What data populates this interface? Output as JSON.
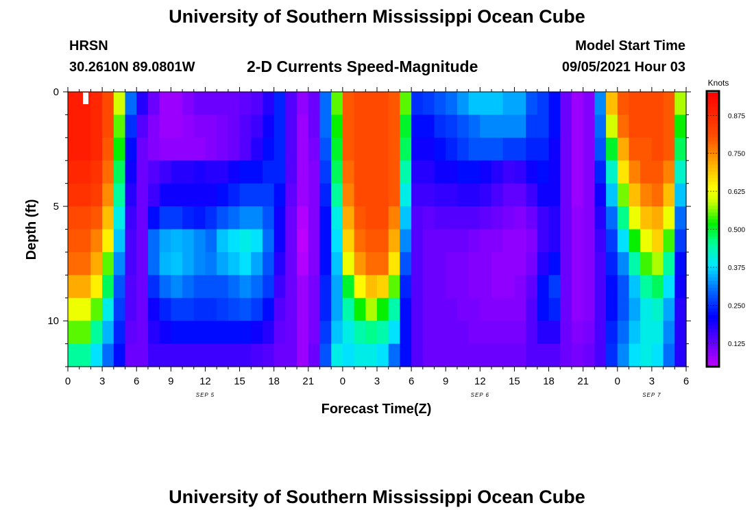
{
  "page": {
    "title_top": "University of Southern Mississippi Ocean Cube",
    "title_bottom": "University of Southern Mississippi Ocean Cube",
    "station": "HRSN",
    "location": "30.2610N  89.0801W",
    "plot_title": "2-D Currents Speed-Magnitude",
    "model_label": "Model Start Time",
    "model_time": "09/05/2021 Hour 03"
  },
  "chart_data": {
    "type": "heatmap",
    "title": "2-D Currents Speed-Magnitude",
    "xlabel": "Forecast Time(Z)",
    "ylabel": "Depth (ft)",
    "x_range_hours": [
      0,
      54
    ],
    "x_ticks": [
      {
        "h": 0,
        "label": "0"
      },
      {
        "h": 3,
        "label": "3"
      },
      {
        "h": 6,
        "label": "6"
      },
      {
        "h": 9,
        "label": "9"
      },
      {
        "h": 12,
        "label": "12"
      },
      {
        "h": 15,
        "label": "15"
      },
      {
        "h": 18,
        "label": "18"
      },
      {
        "h": 21,
        "label": "21"
      },
      {
        "h": 24,
        "label": "0"
      },
      {
        "h": 27,
        "label": "3"
      },
      {
        "h": 30,
        "label": "6"
      },
      {
        "h": 33,
        "label": "9"
      },
      {
        "h": 36,
        "label": "12"
      },
      {
        "h": 39,
        "label": "15"
      },
      {
        "h": 42,
        "label": "18"
      },
      {
        "h": 45,
        "label": "21"
      },
      {
        "h": 48,
        "label": "0"
      },
      {
        "h": 51,
        "label": "3"
      },
      {
        "h": 54,
        "label": "6"
      }
    ],
    "day_labels": [
      {
        "h": 12,
        "label": "SEP 5"
      },
      {
        "h": 36,
        "label": "SEP 6"
      },
      {
        "h": 51,
        "label": "SEP 7"
      }
    ],
    "y_range_ft": [
      0,
      12
    ],
    "y_ticks": [
      {
        "v": 0,
        "label": "0"
      },
      {
        "v": 5,
        "label": "5"
      },
      {
        "v": 10,
        "label": "10"
      }
    ],
    "colorbar": {
      "label": "Knots",
      "range": [
        0.05,
        0.95
      ],
      "ticks": [
        {
          "v": 0.125,
          "label": "0.125"
        },
        {
          "v": 0.25,
          "label": "0.250"
        },
        {
          "v": 0.375,
          "label": "0.375"
        },
        {
          "v": 0.5,
          "label": "0.500"
        },
        {
          "v": 0.625,
          "label": "0.625"
        },
        {
          "v": 0.75,
          "label": "0.750"
        },
        {
          "v": 0.875,
          "label": "0.875"
        }
      ]
    },
    "depth_levels_ft": [
      0.5,
      1.5,
      2.5,
      3.5,
      4.5,
      5.5,
      6.5,
      7.5,
      8.5,
      9.5,
      10.5,
      11.5
    ],
    "columns_per_day_hours": 1,
    "series": [
      {
        "name": "h0",
        "values": [
          0.9,
          0.9,
          0.9,
          0.88,
          0.86,
          0.82,
          0.8,
          0.78,
          0.72,
          0.62,
          0.55,
          0.45
        ]
      },
      {
        "name": "h1",
        "values": [
          0.9,
          0.9,
          0.9,
          0.88,
          0.86,
          0.82,
          0.8,
          0.78,
          0.72,
          0.62,
          0.55,
          0.45
        ]
      },
      {
        "name": "h2",
        "values": [
          0.88,
          0.88,
          0.88,
          0.86,
          0.84,
          0.8,
          0.76,
          0.72,
          0.65,
          0.55,
          0.45,
          0.38
        ]
      },
      {
        "name": "h3",
        "values": [
          0.82,
          0.82,
          0.8,
          0.78,
          0.75,
          0.7,
          0.65,
          0.55,
          0.48,
          0.4,
          0.35,
          0.3
        ]
      },
      {
        "name": "h4",
        "values": [
          0.6,
          0.55,
          0.52,
          0.48,
          0.45,
          0.4,
          0.36,
          0.32,
          0.28,
          0.26,
          0.24,
          0.22
        ]
      },
      {
        "name": "h5",
        "values": [
          0.3,
          0.25,
          0.22,
          0.2,
          0.18,
          0.16,
          0.15,
          0.15,
          0.14,
          0.14,
          0.13,
          0.12
        ]
      },
      {
        "name": "h6",
        "values": [
          0.18,
          0.14,
          0.12,
          0.12,
          0.12,
          0.12,
          0.12,
          0.12,
          0.12,
          0.12,
          0.12,
          0.12
        ]
      },
      {
        "name": "h7",
        "values": [
          0.12,
          0.1,
          0.1,
          0.14,
          0.16,
          0.22,
          0.3,
          0.3,
          0.25,
          0.2,
          0.18,
          0.16
        ]
      },
      {
        "name": "h8",
        "values": [
          0.08,
          0.08,
          0.09,
          0.16,
          0.2,
          0.26,
          0.34,
          0.35,
          0.3,
          0.24,
          0.2,
          0.16
        ]
      },
      {
        "name": "h9",
        "values": [
          0.08,
          0.08,
          0.09,
          0.18,
          0.2,
          0.26,
          0.35,
          0.36,
          0.32,
          0.26,
          0.22,
          0.16
        ]
      },
      {
        "name": "h10",
        "values": [
          0.1,
          0.09,
          0.09,
          0.18,
          0.2,
          0.24,
          0.34,
          0.34,
          0.3,
          0.26,
          0.22,
          0.16
        ]
      },
      {
        "name": "h11",
        "values": [
          0.12,
          0.1,
          0.09,
          0.19,
          0.2,
          0.23,
          0.32,
          0.32,
          0.28,
          0.25,
          0.22,
          0.16
        ]
      },
      {
        "name": "h12",
        "values": [
          0.12,
          0.1,
          0.1,
          0.18,
          0.2,
          0.25,
          0.3,
          0.31,
          0.28,
          0.25,
          0.22,
          0.16
        ]
      },
      {
        "name": "h13",
        "values": [
          0.12,
          0.11,
          0.11,
          0.18,
          0.22,
          0.28,
          0.36,
          0.34,
          0.28,
          0.26,
          0.22,
          0.16
        ]
      },
      {
        "name": "h14",
        "values": [
          0.12,
          0.12,
          0.12,
          0.2,
          0.24,
          0.3,
          0.38,
          0.36,
          0.3,
          0.27,
          0.22,
          0.16
        ]
      },
      {
        "name": "h15",
        "values": [
          0.13,
          0.14,
          0.14,
          0.22,
          0.26,
          0.32,
          0.4,
          0.38,
          0.32,
          0.28,
          0.22,
          0.16
        ]
      },
      {
        "name": "h16",
        "values": [
          0.14,
          0.16,
          0.18,
          0.22,
          0.26,
          0.32,
          0.38,
          0.34,
          0.3,
          0.26,
          0.2,
          0.15
        ]
      },
      {
        "name": "h17",
        "values": [
          0.18,
          0.2,
          0.22,
          0.24,
          0.26,
          0.28,
          0.3,
          0.28,
          0.26,
          0.22,
          0.18,
          0.14
        ]
      },
      {
        "name": "h18",
        "values": [
          0.24,
          0.24,
          0.24,
          0.24,
          0.22,
          0.2,
          0.2,
          0.18,
          0.16,
          0.14,
          0.13,
          0.12
        ]
      },
      {
        "name": "h19",
        "values": [
          0.14,
          0.14,
          0.14,
          0.14,
          0.13,
          0.12,
          0.12,
          0.12,
          0.12,
          0.12,
          0.12,
          0.12
        ]
      },
      {
        "name": "h20",
        "values": [
          0.09,
          0.08,
          0.08,
          0.08,
          0.08,
          0.06,
          0.05,
          0.06,
          0.08,
          0.08,
          0.08,
          0.08
        ]
      },
      {
        "name": "h21",
        "values": [
          0.12,
          0.12,
          0.11,
          0.1,
          0.1,
          0.1,
          0.1,
          0.1,
          0.11,
          0.11,
          0.11,
          0.12
        ]
      },
      {
        "name": "h22",
        "values": [
          0.3,
          0.3,
          0.28,
          0.26,
          0.24,
          0.22,
          0.22,
          0.22,
          0.24,
          0.24,
          0.26,
          0.28
        ]
      },
      {
        "name": "h23",
        "values": [
          0.55,
          0.52,
          0.5,
          0.48,
          0.45,
          0.4,
          0.38,
          0.36,
          0.34,
          0.34,
          0.36,
          0.4
        ]
      },
      {
        "name": "h24",
        "values": [
          0.8,
          0.8,
          0.8,
          0.78,
          0.76,
          0.72,
          0.68,
          0.62,
          0.5,
          0.44,
          0.4,
          0.38
        ]
      },
      {
        "name": "h25",
        "values": [
          0.82,
          0.82,
          0.82,
          0.82,
          0.82,
          0.8,
          0.78,
          0.74,
          0.64,
          0.52,
          0.44,
          0.4
        ]
      },
      {
        "name": "h26",
        "values": [
          0.82,
          0.82,
          0.82,
          0.82,
          0.82,
          0.82,
          0.8,
          0.78,
          0.7,
          0.58,
          0.46,
          0.4
        ]
      },
      {
        "name": "h27",
        "values": [
          0.82,
          0.82,
          0.82,
          0.82,
          0.82,
          0.82,
          0.8,
          0.78,
          0.68,
          0.52,
          0.44,
          0.38
        ]
      },
      {
        "name": "h28",
        "values": [
          0.8,
          0.8,
          0.8,
          0.8,
          0.8,
          0.76,
          0.72,
          0.66,
          0.55,
          0.44,
          0.38,
          0.3
        ]
      },
      {
        "name": "h29",
        "values": [
          0.55,
          0.5,
          0.48,
          0.44,
          0.4,
          0.36,
          0.32,
          0.28,
          0.24,
          0.22,
          0.22,
          0.22
        ]
      },
      {
        "name": "h30",
        "values": [
          0.25,
          0.22,
          0.2,
          0.18,
          0.16,
          0.14,
          0.14,
          0.14,
          0.14,
          0.14,
          0.14,
          0.14
        ]
      },
      {
        "name": "h31",
        "values": [
          0.26,
          0.22,
          0.2,
          0.18,
          0.16,
          0.13,
          0.12,
          0.12,
          0.12,
          0.12,
          0.12,
          0.12
        ]
      },
      {
        "name": "h32",
        "values": [
          0.28,
          0.25,
          0.22,
          0.2,
          0.17,
          0.14,
          0.12,
          0.12,
          0.12,
          0.12,
          0.12,
          0.12
        ]
      },
      {
        "name": "h33",
        "values": [
          0.3,
          0.26,
          0.24,
          0.2,
          0.17,
          0.14,
          0.12,
          0.11,
          0.11,
          0.12,
          0.12,
          0.12
        ]
      },
      {
        "name": "h34",
        "values": [
          0.33,
          0.28,
          0.26,
          0.22,
          0.18,
          0.14,
          0.12,
          0.11,
          0.11,
          0.11,
          0.12,
          0.12
        ]
      },
      {
        "name": "h35",
        "values": [
          0.36,
          0.3,
          0.28,
          0.22,
          0.18,
          0.14,
          0.11,
          0.1,
          0.1,
          0.11,
          0.11,
          0.12
        ]
      },
      {
        "name": "h36",
        "values": [
          0.36,
          0.32,
          0.28,
          0.2,
          0.17,
          0.13,
          0.1,
          0.1,
          0.1,
          0.1,
          0.11,
          0.12
        ]
      },
      {
        "name": "h37",
        "values": [
          0.36,
          0.32,
          0.28,
          0.18,
          0.15,
          0.12,
          0.1,
          0.09,
          0.09,
          0.1,
          0.11,
          0.12
        ]
      },
      {
        "name": "h38",
        "values": [
          0.34,
          0.32,
          0.26,
          0.16,
          0.13,
          0.11,
          0.09,
          0.09,
          0.09,
          0.1,
          0.11,
          0.12
        ]
      },
      {
        "name": "h39",
        "values": [
          0.34,
          0.32,
          0.26,
          0.17,
          0.13,
          0.1,
          0.09,
          0.09,
          0.1,
          0.1,
          0.11,
          0.12
        ]
      },
      {
        "name": "h40",
        "values": [
          0.28,
          0.26,
          0.24,
          0.2,
          0.16,
          0.12,
          0.1,
          0.11,
          0.13,
          0.14,
          0.14,
          0.14
        ]
      },
      {
        "name": "h41",
        "values": [
          0.26,
          0.26,
          0.24,
          0.22,
          0.2,
          0.16,
          0.16,
          0.18,
          0.22,
          0.22,
          0.18,
          0.14
        ]
      },
      {
        "name": "h42",
        "values": [
          0.22,
          0.22,
          0.2,
          0.2,
          0.2,
          0.18,
          0.18,
          0.22,
          0.26,
          0.24,
          0.18,
          0.14
        ]
      },
      {
        "name": "h43",
        "values": [
          0.12,
          0.12,
          0.12,
          0.12,
          0.12,
          0.12,
          0.12,
          0.12,
          0.12,
          0.12,
          0.12,
          0.12
        ]
      },
      {
        "name": "h44",
        "values": [
          0.08,
          0.08,
          0.08,
          0.08,
          0.08,
          0.09,
          0.09,
          0.09,
          0.09,
          0.09,
          0.1,
          0.11
        ]
      },
      {
        "name": "h45",
        "values": [
          0.1,
          0.1,
          0.1,
          0.1,
          0.1,
          0.1,
          0.1,
          0.1,
          0.1,
          0.1,
          0.11,
          0.12
        ]
      },
      {
        "name": "h46",
        "values": [
          0.32,
          0.3,
          0.28,
          0.24,
          0.2,
          0.18,
          0.16,
          0.15,
          0.15,
          0.15,
          0.15,
          0.15
        ]
      },
      {
        "name": "h47",
        "values": [
          0.7,
          0.6,
          0.5,
          0.42,
          0.36,
          0.3,
          0.26,
          0.24,
          0.22,
          0.22,
          0.24,
          0.25
        ]
      },
      {
        "name": "h48",
        "values": [
          0.8,
          0.78,
          0.72,
          0.66,
          0.56,
          0.46,
          0.38,
          0.32,
          0.28,
          0.28,
          0.3,
          0.32
        ]
      },
      {
        "name": "h49",
        "values": [
          0.82,
          0.82,
          0.8,
          0.76,
          0.7,
          0.62,
          0.52,
          0.44,
          0.36,
          0.34,
          0.36,
          0.38
        ]
      },
      {
        "name": "h50",
        "values": [
          0.82,
          0.82,
          0.8,
          0.8,
          0.76,
          0.7,
          0.62,
          0.54,
          0.45,
          0.4,
          0.4,
          0.4
        ]
      },
      {
        "name": "h51",
        "values": [
          0.82,
          0.82,
          0.82,
          0.8,
          0.78,
          0.72,
          0.68,
          0.58,
          0.48,
          0.42,
          0.4,
          0.38
        ]
      },
      {
        "name": "h52",
        "values": [
          0.8,
          0.8,
          0.8,
          0.76,
          0.7,
          0.62,
          0.54,
          0.45,
          0.38,
          0.34,
          0.32,
          0.3
        ]
      },
      {
        "name": "h53",
        "values": [
          0.58,
          0.52,
          0.48,
          0.42,
          0.36,
          0.3,
          0.26,
          0.22,
          0.2,
          0.18,
          0.18,
          0.18
        ]
      }
    ]
  }
}
